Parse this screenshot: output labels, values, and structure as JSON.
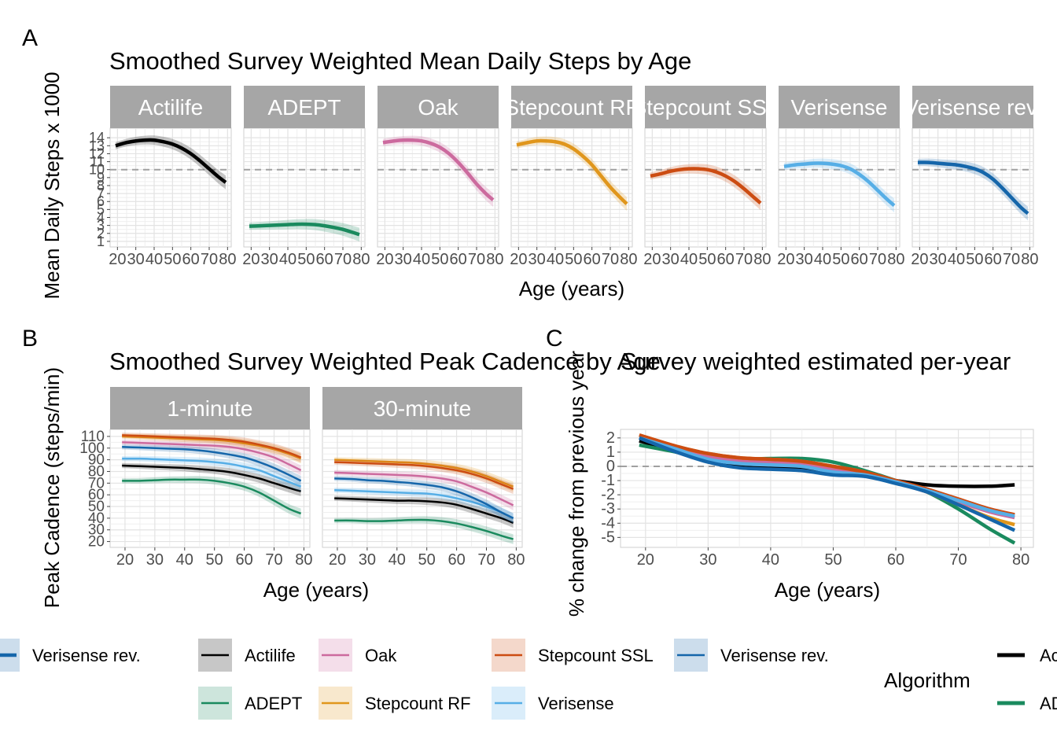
{
  "colors": {
    "Actilife": "#000000",
    "ADEPT": "#1a8a5e",
    "Oak": "#cc6a9e",
    "Stepcount RF": "#e0961c",
    "Stepcount SSL": "#cc4c12",
    "Verisense": "#56aee6",
    "Verisense rev.": "#1566aa",
    "strip_bg": "#a6a6a6",
    "grid": "#e3e3e3",
    "ref_line": "#a0a0a0"
  },
  "panel_letters": [
    "A",
    "B",
    "C"
  ],
  "chart_data": [
    {
      "id": "A",
      "type": "line",
      "title": "Smoothed Survey Weighted Mean Daily Steps by Age",
      "xlabel": "Age (years)",
      "ylabel": "Mean Daily Steps x 1000",
      "xlim": [
        16,
        82
      ],
      "ylim": [
        0.3,
        15.2
      ],
      "xticks": [
        20,
        30,
        40,
        50,
        60,
        70,
        80
      ],
      "yticks": [
        1,
        2,
        3,
        4,
        5,
        6,
        7,
        8,
        9,
        10,
        11,
        12,
        13,
        14
      ],
      "ref_y": 10,
      "facets": [
        {
          "label": "Actilife",
          "series": "Actilife",
          "x": [
            19,
            25,
            30,
            35,
            40,
            45,
            50,
            55,
            60,
            65,
            70,
            75,
            79
          ],
          "y": [
            13.0,
            13.4,
            13.6,
            13.7,
            13.7,
            13.5,
            13.2,
            12.7,
            12.0,
            11.1,
            10.1,
            9.1,
            8.4
          ]
        },
        {
          "label": "ADEPT",
          "series": "ADEPT",
          "x": [
            19,
            25,
            30,
            35,
            40,
            45,
            50,
            55,
            60,
            65,
            70,
            75,
            79
          ],
          "y": [
            2.9,
            2.95,
            3.0,
            3.05,
            3.1,
            3.15,
            3.15,
            3.1,
            2.95,
            2.75,
            2.5,
            2.15,
            1.85
          ]
        },
        {
          "label": "Oak",
          "series": "Oak",
          "x": [
            19,
            25,
            30,
            35,
            40,
            45,
            50,
            55,
            60,
            65,
            70,
            75,
            79
          ],
          "y": [
            13.4,
            13.6,
            13.7,
            13.7,
            13.6,
            13.3,
            12.8,
            12.0,
            10.9,
            9.6,
            8.2,
            7.0,
            6.2
          ]
        },
        {
          "label": "Stepcount RF",
          "series": "Stepcount RF",
          "x": [
            19,
            25,
            30,
            35,
            40,
            45,
            50,
            55,
            60,
            65,
            70,
            75,
            79
          ],
          "y": [
            13.1,
            13.4,
            13.6,
            13.6,
            13.5,
            13.2,
            12.6,
            11.7,
            10.6,
            9.2,
            7.8,
            6.6,
            5.7
          ]
        },
        {
          "label": "Stepcount SSL",
          "series": "Stepcount SSL",
          "x": [
            19,
            25,
            30,
            35,
            40,
            45,
            50,
            55,
            60,
            65,
            70,
            75,
            79
          ],
          "y": [
            9.2,
            9.5,
            9.8,
            10.0,
            10.1,
            10.1,
            10.0,
            9.7,
            9.2,
            8.5,
            7.6,
            6.6,
            5.8
          ]
        },
        {
          "label": "Verisense",
          "series": "Verisense",
          "x": [
            19,
            25,
            30,
            35,
            40,
            45,
            50,
            55,
            60,
            65,
            70,
            75,
            79
          ],
          "y": [
            10.4,
            10.6,
            10.7,
            10.8,
            10.8,
            10.7,
            10.5,
            10.1,
            9.4,
            8.5,
            7.4,
            6.3,
            5.5
          ]
        },
        {
          "label": "Verisense rev.",
          "series": "Verisense rev.",
          "x": [
            19,
            25,
            30,
            35,
            40,
            45,
            50,
            55,
            60,
            65,
            70,
            75,
            79
          ],
          "y": [
            10.9,
            10.9,
            10.8,
            10.7,
            10.6,
            10.4,
            10.1,
            9.6,
            8.8,
            7.7,
            6.5,
            5.3,
            4.5
          ]
        }
      ]
    },
    {
      "id": "B",
      "type": "line",
      "title": "Smoothed Survey Weighted Peak Cadence by Age",
      "xlabel": "Age (years)",
      "ylabel": "Peak Cadence (steps/min)",
      "xlim": [
        15,
        82
      ],
      "ylim": [
        15,
        116
      ],
      "xticks": [
        20,
        30,
        40,
        50,
        60,
        70,
        80
      ],
      "yticks": [
        20,
        30,
        40,
        50,
        60,
        70,
        80,
        90,
        100,
        110
      ],
      "facets": [
        {
          "label": "1-minute",
          "x": [
            19,
            25,
            30,
            35,
            40,
            45,
            50,
            55,
            60,
            65,
            70,
            75,
            79
          ],
          "series": [
            {
              "name": "Actilife",
              "y": [
                85,
                84.5,
                84,
                83.5,
                83,
                82,
                81,
                79.5,
                77,
                74,
                70,
                66,
                63
              ]
            },
            {
              "name": "ADEPT",
              "y": [
                72,
                72,
                72.5,
                73,
                73,
                73,
                72,
                70,
                67,
                62,
                55,
                48,
                44
              ]
            },
            {
              "name": "Oak",
              "y": [
                105,
                104.5,
                104,
                103.5,
                103,
                102.5,
                102,
                101,
                99,
                96,
                92,
                86,
                81
              ]
            },
            {
              "name": "Stepcount RF",
              "y": [
                110,
                109.5,
                109,
                108.5,
                108,
                107.5,
                107,
                106,
                104,
                102,
                99,
                95,
                91
              ]
            },
            {
              "name": "Stepcount SSL",
              "y": [
                111,
                110.5,
                110,
                109.5,
                109,
                108.5,
                108,
                107,
                105.5,
                103,
                100,
                96,
                92
              ]
            },
            {
              "name": "Verisense",
              "y": [
                91,
                91,
                90.5,
                90,
                89.5,
                89,
                88,
                86.5,
                84,
                81,
                76,
                71,
                67
              ]
            },
            {
              "name": "Verisense rev.",
              "y": [
                101,
                100.5,
                100,
                99.5,
                99,
                98,
                96.5,
                94.5,
                92,
                88,
                83,
                77,
                72
              ]
            }
          ]
        },
        {
          "label": "30-minute",
          "x": [
            19,
            25,
            30,
            35,
            40,
            45,
            50,
            55,
            60,
            65,
            70,
            75,
            79
          ],
          "series": [
            {
              "name": "Actilife",
              "y": [
                57,
                56.5,
                56,
                55.5,
                55,
                55,
                54.5,
                53.5,
                51.5,
                48,
                44,
                40,
                36
              ]
            },
            {
              "name": "ADEPT",
              "y": [
                38,
                38,
                37.5,
                37.5,
                38,
                38.5,
                38.5,
                37.5,
                35.5,
                32.5,
                29,
                25,
                22
              ]
            },
            {
              "name": "Oak",
              "y": [
                79,
                78.5,
                78,
                77.5,
                77,
                76.5,
                75.5,
                74,
                71.5,
                67,
                62,
                56,
                51
              ]
            },
            {
              "name": "Stepcount RF",
              "y": [
                90,
                89.5,
                89,
                88.5,
                88,
                87.5,
                86.5,
                85,
                83,
                80,
                76,
                71,
                67
              ]
            },
            {
              "name": "Stepcount SSL",
              "y": [
                88,
                87.5,
                87,
                86.5,
                86,
                85.5,
                84.5,
                83,
                81,
                78,
                74,
                69,
                65
              ]
            },
            {
              "name": "Verisense",
              "y": [
                64,
                63.5,
                63,
                62.5,
                62,
                61.5,
                61,
                59.5,
                57,
                54,
                50,
                45,
                40
              ]
            },
            {
              "name": "Verisense rev.",
              "y": [
                74,
                73.5,
                72.5,
                72,
                71,
                70,
                68.5,
                66.5,
                63,
                58,
                52,
                45,
                40
              ]
            }
          ]
        }
      ]
    },
    {
      "id": "C",
      "type": "line",
      "title": "Survey weighted estimated per-year",
      "xlabel": "Age (years)",
      "ylabel": "% change from previous year",
      "xlim": [
        16,
        82
      ],
      "ylim": [
        -5.7,
        2.6
      ],
      "xticks": [
        20,
        30,
        40,
        50,
        60,
        70,
        80
      ],
      "yticks": [
        -5,
        -4,
        -3,
        -2,
        -1,
        0,
        1,
        2
      ],
      "ref_y": 0,
      "x": [
        19,
        25,
        30,
        35,
        40,
        45,
        50,
        55,
        60,
        65,
        70,
        75,
        79
      ],
      "series": [
        {
          "name": "Actilife",
          "y": [
            1.8,
            1.0,
            0.35,
            0.1,
            0.0,
            -0.1,
            -0.4,
            -0.6,
            -1.0,
            -1.3,
            -1.4,
            -1.4,
            -1.3
          ]
        },
        {
          "name": "ADEPT",
          "y": [
            1.5,
            1.0,
            0.6,
            0.5,
            0.55,
            0.55,
            0.3,
            -0.3,
            -1.0,
            -1.8,
            -3.0,
            -4.4,
            -5.4
          ]
        },
        {
          "name": "Oak",
          "y": [
            2.0,
            1.2,
            0.7,
            0.4,
            0.3,
            0.2,
            -0.2,
            -0.5,
            -1.1,
            -1.8,
            -2.5,
            -3.2,
            -3.6
          ]
        },
        {
          "name": "Stepcount RF",
          "y": [
            2.2,
            1.4,
            0.9,
            0.6,
            0.5,
            0.35,
            0.0,
            -0.4,
            -1.1,
            -1.8,
            -2.7,
            -3.6,
            -4.1
          ]
        },
        {
          "name": "Stepcount SSL",
          "y": [
            2.2,
            1.4,
            0.9,
            0.6,
            0.5,
            0.35,
            0.0,
            -0.4,
            -1.0,
            -1.6,
            -2.3,
            -3.0,
            -3.4
          ]
        },
        {
          "name": "Verisense",
          "y": [
            2.0,
            1.2,
            0.5,
            0.2,
            0.1,
            0.0,
            -0.4,
            -0.6,
            -1.1,
            -1.7,
            -2.4,
            -3.1,
            -3.5
          ]
        },
        {
          "name": "Verisense rev.",
          "y": [
            2.0,
            1.0,
            0.3,
            -0.1,
            -0.2,
            -0.3,
            -0.6,
            -0.7,
            -1.2,
            -1.8,
            -2.7,
            -3.7,
            -4.5
          ]
        }
      ]
    }
  ],
  "legend_left": {
    "rows": [
      [
        "Verisense rev.",
        "Actilife",
        "Oak",
        "Stepcount SSL",
        "Verisense rev."
      ],
      [
        "ADEPT",
        "Stepcount RF",
        "Verisense"
      ]
    ]
  },
  "legend_right": {
    "title": "Algorithm",
    "items": [
      "Actilife",
      "ADEPT"
    ],
    "visible_text": [
      "Ac",
      "AD"
    ]
  }
}
